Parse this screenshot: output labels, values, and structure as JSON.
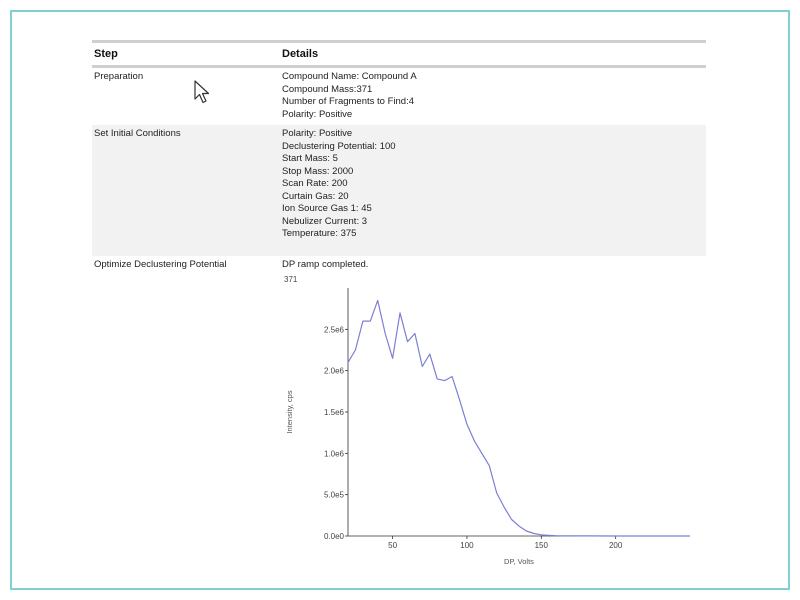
{
  "table": {
    "headers": {
      "step": "Step",
      "details": "Details"
    },
    "rows": [
      {
        "step": "Preparation",
        "details": [
          "Compound Name: Compound A",
          "Compound Mass:371",
          "Number of Fragments to Find:4",
          "Polarity: Positive"
        ]
      },
      {
        "step": "Set Initial Conditions",
        "details": [
          "Polarity: Positive",
          "Declustering Potential: 100",
          "Start Mass: 5",
          "Stop Mass: 2000",
          "Scan Rate: 200",
          "Curtain Gas: 20",
          "Ion Source Gas 1: 45",
          "Nebulizer Current: 3",
          "Temperature: 375"
        ]
      },
      {
        "step": "Optimize Declustering Potential",
        "details": [
          "DP ramp completed."
        ]
      }
    ]
  },
  "chart_data": {
    "type": "line",
    "title": "371",
    "xlabel": "DP, Volts",
    "ylabel": "Intensity, cps",
    "xlim": [
      20,
      250
    ],
    "ylim": [
      0,
      3000000
    ],
    "xticks": [
      50,
      100,
      150,
      200
    ],
    "xtick_labels": [
      "50",
      "100",
      "150",
      "200"
    ],
    "yticks": [
      0,
      500000,
      1000000,
      1500000,
      2000000,
      2500000
    ],
    "ytick_labels": [
      "0.0e0",
      "5.0e5",
      "1.0e6",
      "1.5e6",
      "2.0e6",
      "2.5e6"
    ],
    "grid": false,
    "line_color": "#7b7fd4",
    "series": [
      {
        "x": [
          20,
          25,
          30,
          35,
          40,
          45,
          50,
          55,
          60,
          65,
          70,
          75,
          80,
          85,
          90,
          95,
          100,
          105,
          110,
          115,
          120,
          125,
          130,
          135,
          140,
          145,
          150,
          155,
          160,
          170,
          180,
          200,
          250
        ],
        "y": [
          2100000,
          2250000,
          2600000,
          2600000,
          2850000,
          2450000,
          2150000,
          2700000,
          2350000,
          2450000,
          2050000,
          2200000,
          1900000,
          1880000,
          1930000,
          1650000,
          1350000,
          1150000,
          1000000,
          850000,
          520000,
          350000,
          200000,
          120000,
          60000,
          30000,
          15000,
          8000,
          4000,
          2000,
          1000,
          500,
          300
        ]
      }
    ]
  }
}
